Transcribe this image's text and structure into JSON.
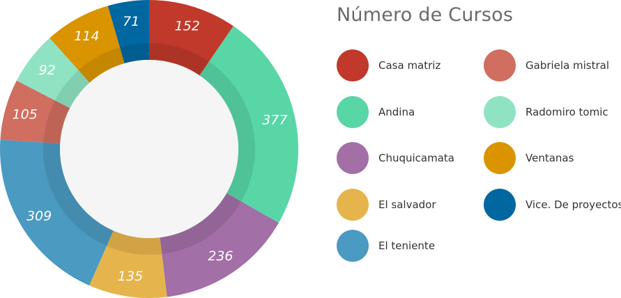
{
  "chart_data": {
    "type": "pie",
    "variant": "donut",
    "title": "Número de Cursos",
    "legend_position": "right",
    "categories": [
      "Casa matriz",
      "Andina",
      "Chuquicamata",
      "El salvador",
      "El teniente",
      "Gabriela mistral",
      "Radomiro tomic",
      "Ventanas",
      "Vice. De proyectos"
    ],
    "values": [
      152,
      377,
      236,
      135,
      309,
      105,
      92,
      114,
      71
    ],
    "colors": [
      "#C0392B",
      "#58D6A6",
      "#A26FA7",
      "#E6B44C",
      "#4B9AC1",
      "#D06E60",
      "#8FE3C3",
      "#D99400",
      "#0067A0"
    ],
    "slice_order": [
      "Casa matriz",
      "Andina",
      "Chuquicamata",
      "El salvador",
      "El teniente",
      "Gabriela mistral",
      "Radomiro tomic",
      "Ventanas",
      "Vice. De proyectos"
    ],
    "center_color": "#f5f5f5"
  }
}
